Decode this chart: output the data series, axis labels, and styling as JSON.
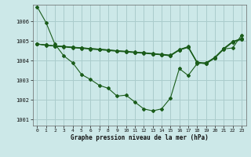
{
  "title": "Graphe pression niveau de la mer (hPa)",
  "background_color": "#cce8e8",
  "grid_color": "#aacccc",
  "line_color": "#1a5c1a",
  "x_ticks": [
    0,
    1,
    2,
    3,
    4,
    5,
    6,
    7,
    8,
    9,
    10,
    11,
    12,
    13,
    14,
    15,
    16,
    17,
    18,
    19,
    20,
    21,
    22,
    23
  ],
  "ylim": [
    1000.7,
    1006.85
  ],
  "yticks": [
    1001,
    1002,
    1003,
    1004,
    1005,
    1006
  ],
  "lines": [
    [
      1006.75,
      1005.95,
      1004.85,
      1004.25,
      1003.9,
      1003.3,
      1003.05,
      1002.75,
      1002.6,
      1002.2,
      1002.25,
      1001.9,
      1001.55,
      1001.45,
      1001.55,
      1002.1,
      1003.6,
      1003.25,
      1003.85,
      1003.9,
      1004.15,
      1004.6,
      1004.65,
      1005.3
    ],
    [
      1004.85,
      1004.8,
      1004.75,
      1004.72,
      1004.68,
      1004.65,
      1004.62,
      1004.58,
      1004.55,
      1004.5,
      1004.47,
      1004.43,
      1004.4,
      1004.35,
      1004.3,
      1004.25,
      1004.55,
      1004.7,
      1003.9,
      1003.85,
      1004.15,
      1004.6,
      1004.96,
      1005.1
    ],
    [
      1004.85,
      1004.8,
      1004.76,
      1004.73,
      1004.69,
      1004.66,
      1004.62,
      1004.59,
      1004.55,
      1004.51,
      1004.48,
      1004.44,
      1004.41,
      1004.37,
      1004.33,
      1004.29,
      1004.57,
      1004.72,
      1003.93,
      1003.88,
      1004.18,
      1004.63,
      1004.98,
      1005.13
    ],
    [
      1004.85,
      1004.79,
      1004.74,
      1004.7,
      1004.66,
      1004.63,
      1004.59,
      1004.56,
      1004.52,
      1004.48,
      1004.45,
      1004.41,
      1004.38,
      1004.34,
      1004.3,
      1004.26,
      1004.54,
      1004.68,
      1003.9,
      1003.85,
      1004.14,
      1004.59,
      1004.94,
      1005.09
    ]
  ]
}
